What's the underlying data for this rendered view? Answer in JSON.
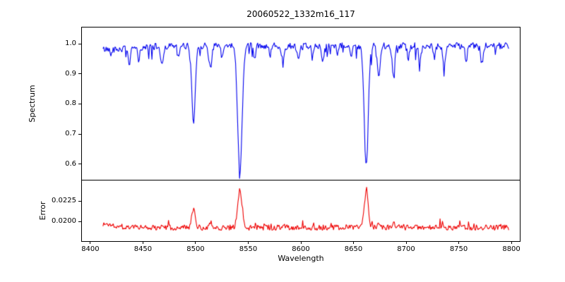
{
  "background": "#ffffff",
  "chart_data": {
    "type": "line",
    "title": "20060522_1332m16_117",
    "xlabel": "Wavelength",
    "grid": false,
    "legend": null,
    "xlim": [
      8392,
      8808
    ],
    "x_data_range": [
      8412,
      8798
    ],
    "x_ticks": [
      {
        "value": 8400,
        "label": "8400"
      },
      {
        "value": 8450,
        "label": "8450"
      },
      {
        "value": 8500,
        "label": "8500"
      },
      {
        "value": 8550,
        "label": "8550"
      },
      {
        "value": 8600,
        "label": "8600"
      },
      {
        "value": 8650,
        "label": "8650"
      },
      {
        "value": 8700,
        "label": "8700"
      },
      {
        "value": 8750,
        "label": "8750"
      },
      {
        "value": 8800,
        "label": "8800"
      }
    ],
    "panels": [
      {
        "name": "spectrum",
        "ylabel": "Spectrum",
        "ylim": [
          0.548,
          1.054
        ],
        "y_ticks": [
          {
            "value": 1.0,
            "label": "1.0"
          },
          {
            "value": 0.9,
            "label": "0.9"
          },
          {
            "value": 0.8,
            "label": "0.8"
          },
          {
            "value": 0.7,
            "label": "0.7"
          },
          {
            "value": 0.6,
            "label": "0.6"
          }
        ],
        "series": {
          "name": "spectrum-flux",
          "color": "#0000ee",
          "baseline": 0.998,
          "noise": 0.022,
          "bias": 0.72,
          "spike": -0.05,
          "seed": 42,
          "features": [
            {
              "center": 8420,
              "amplitude": -0.012,
              "width": 25
            },
            {
              "center": 8437,
              "amplitude": -0.05,
              "width": 1.2
            },
            {
              "center": 8446,
              "amplitude": -0.04,
              "width": 1.0
            },
            {
              "center": 8468,
              "amplitude": -0.06,
              "width": 1.3
            },
            {
              "center": 8484,
              "amplitude": -0.04,
              "width": 1.0
            },
            {
              "center": 8498.0,
              "amplitude": -0.26,
              "width": 1.6
            },
            {
              "center": 8514,
              "amplitude": -0.07,
              "width": 1.4
            },
            {
              "center": 8525,
              "amplitude": -0.04,
              "width": 1.0
            },
            {
              "center": 8542.1,
              "amplitude": -0.425,
              "width": 2.1
            },
            {
              "center": 8556,
              "amplitude": -0.04,
              "width": 1.0
            },
            {
              "center": 8571,
              "amplitude": -0.03,
              "width": 1.0
            },
            {
              "center": 8583,
              "amplitude": -0.05,
              "width": 1.2
            },
            {
              "center": 8598,
              "amplitude": -0.05,
              "width": 1.2
            },
            {
              "center": 8611,
              "amplitude": -0.04,
              "width": 1.0
            },
            {
              "center": 8621,
              "amplitude": -0.05,
              "width": 1.2
            },
            {
              "center": 8635,
              "amplitude": -0.03,
              "width": 1.0
            },
            {
              "center": 8648,
              "amplitude": -0.04,
              "width": 1.0
            },
            {
              "center": 8662.1,
              "amplitude": -0.405,
              "width": 1.9
            },
            {
              "center": 8674,
              "amplitude": -0.1,
              "width": 1.5
            },
            {
              "center": 8688,
              "amplitude": -0.09,
              "width": 1.4
            },
            {
              "center": 8702,
              "amplitude": -0.04,
              "width": 1.0
            },
            {
              "center": 8713,
              "amplitude": -0.05,
              "width": 1.2
            },
            {
              "center": 8727,
              "amplitude": -0.04,
              "width": 1.0
            },
            {
              "center": 8736,
              "amplitude": -0.06,
              "width": 1.2
            },
            {
              "center": 8757,
              "amplitude": -0.05,
              "width": 1.0
            },
            {
              "center": 8772,
              "amplitude": -0.06,
              "width": 1.2
            }
          ]
        }
      },
      {
        "name": "error",
        "ylabel": "Error",
        "ylim": [
          0.0176,
          0.025
        ],
        "y_ticks": [
          {
            "value": 0.0225,
            "label": "0.0225"
          },
          {
            "value": 0.02,
            "label": "0.0200"
          }
        ],
        "series": {
          "name": "error-level",
          "color": "#ee0000",
          "baseline": 0.01925,
          "noise": 0.0007,
          "bias": 0.5,
          "spike": 0.0009,
          "seed": 1337,
          "features": [
            {
              "center": 8415,
              "amplitude": 0.0004,
              "width": 10
            },
            {
              "center": 8468,
              "amplitude": 0.0005,
              "width": 1.3
            },
            {
              "center": 8498.0,
              "amplitude": 0.0021,
              "width": 1.7
            },
            {
              "center": 8514,
              "amplitude": 0.0007,
              "width": 1.4
            },
            {
              "center": 8542.1,
              "amplitude": 0.0046,
              "width": 2.1
            },
            {
              "center": 8583,
              "amplitude": 0.0003,
              "width": 1.2
            },
            {
              "center": 8662.1,
              "amplitude": 0.0044,
              "width": 1.9
            },
            {
              "center": 8674,
              "amplitude": 0.0004,
              "width": 1.4
            },
            {
              "center": 8688,
              "amplitude": 0.0004,
              "width": 1.3
            },
            {
              "center": 8736,
              "amplitude": 0.0003,
              "width": 1.2
            }
          ]
        }
      }
    ]
  }
}
